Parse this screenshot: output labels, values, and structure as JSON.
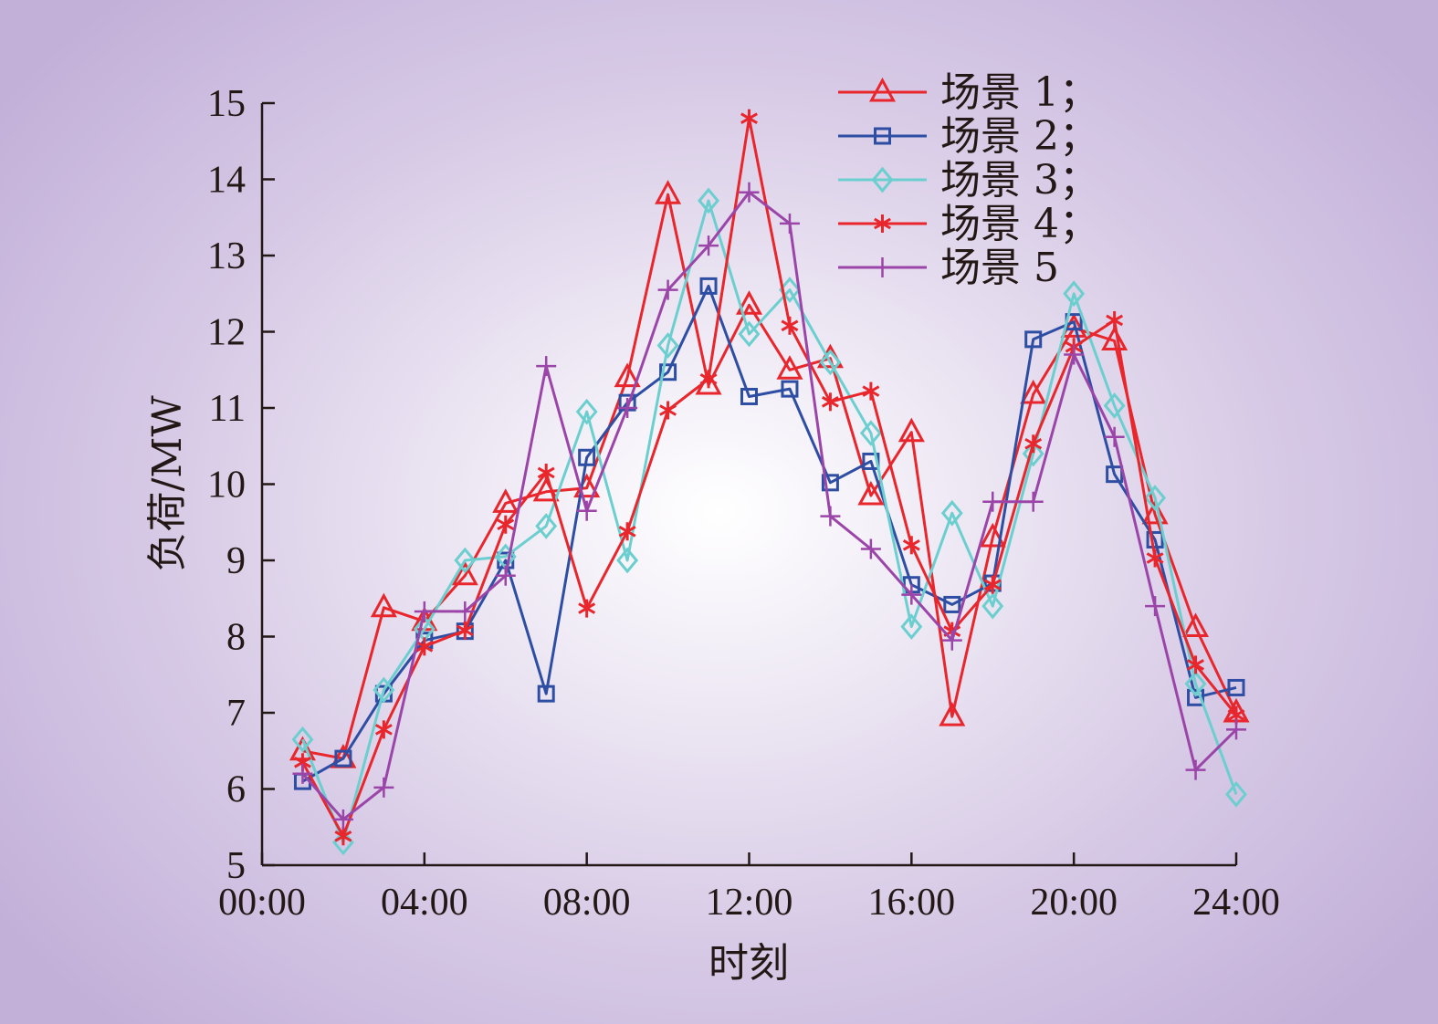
{
  "chart_data": {
    "type": "line",
    "xlabel": "时刻",
    "ylabel": "负荷/MW",
    "xlim": [
      0,
      24
    ],
    "ylim": [
      5,
      15
    ],
    "x_ticks": [
      "00:00",
      "04:00",
      "08:00",
      "12:00",
      "16:00",
      "20:00",
      "24:00"
    ],
    "y_ticks": [
      5,
      6,
      7,
      8,
      9,
      10,
      11,
      12,
      13,
      14,
      15
    ],
    "grid": false,
    "legend_position": "top-right",
    "x": [
      1,
      2,
      3,
      4,
      5,
      6,
      7,
      8,
      9,
      10,
      11,
      12,
      13,
      14,
      15,
      16,
      17,
      18,
      19,
      20,
      21,
      22,
      23,
      24
    ],
    "series": [
      {
        "name": "场景 1；",
        "color": "#e8262c",
        "marker": "triangle",
        "values": [
          6.5,
          6.4,
          8.38,
          8.2,
          8.8,
          9.75,
          9.9,
          9.95,
          11.4,
          13.8,
          11.3,
          12.35,
          11.5,
          11.65,
          9.85,
          10.68,
          6.95,
          9.3,
          11.18,
          12.05,
          11.88,
          9.6,
          8.12,
          7.0
        ]
      },
      {
        "name": "场景 2；",
        "color": "#2e4ea3",
        "marker": "square",
        "values": [
          6.1,
          6.4,
          7.25,
          7.95,
          8.07,
          9.0,
          7.25,
          10.35,
          11.07,
          11.47,
          12.6,
          11.15,
          11.25,
          10.02,
          10.3,
          8.68,
          8.42,
          8.7,
          11.9,
          12.13,
          10.13,
          9.27,
          7.2,
          7.33
        ]
      },
      {
        "name": "场景 3；",
        "color": "#6ccfcf",
        "marker": "diamond",
        "values": [
          6.65,
          5.3,
          7.3,
          8.1,
          9.0,
          9.05,
          9.45,
          10.95,
          9.0,
          11.82,
          13.72,
          11.97,
          12.55,
          11.6,
          10.67,
          8.13,
          9.62,
          8.4,
          10.4,
          12.5,
          11.03,
          9.82,
          7.38,
          5.93
        ]
      },
      {
        "name": "场景 4；",
        "color": "#e8262c",
        "marker": "asterisk",
        "values": [
          6.35,
          5.38,
          6.78,
          7.87,
          8.08,
          9.47,
          10.15,
          8.37,
          9.38,
          10.97,
          11.38,
          14.8,
          12.08,
          11.08,
          11.22,
          9.2,
          8.07,
          8.68,
          10.53,
          11.8,
          12.15,
          9.03,
          7.63,
          6.97
        ]
      },
      {
        "name": "场景 5",
        "color": "#9b45a8",
        "marker": "plus",
        "values": [
          6.2,
          5.6,
          6.02,
          8.33,
          8.33,
          8.8,
          11.55,
          9.65,
          11.0,
          12.55,
          13.13,
          13.83,
          13.42,
          9.58,
          9.15,
          8.55,
          7.95,
          9.77,
          9.77,
          11.7,
          10.62,
          8.4,
          6.25,
          6.78
        ]
      }
    ]
  }
}
